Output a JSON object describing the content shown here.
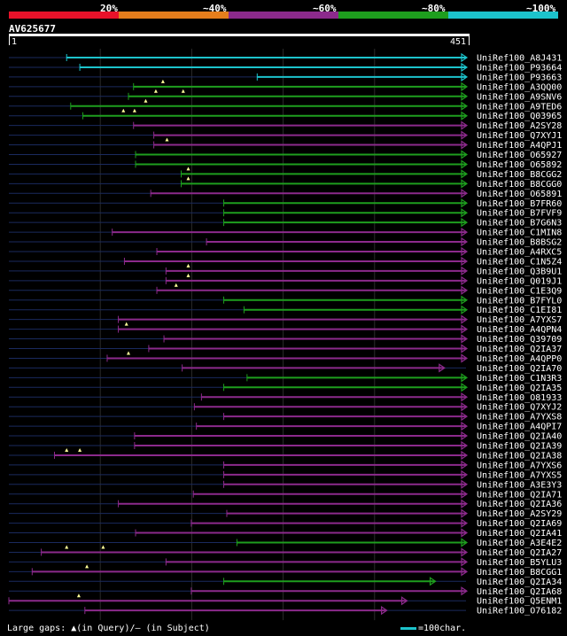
{
  "identity_legend": {
    "labels": [
      "20%",
      "~40%",
      "~60%",
      "~80%",
      "~100%"
    ],
    "colors": [
      "#e8122a",
      "#e67e1c",
      "#8c2a8c",
      "#1e9e1e",
      "#1cc3cc"
    ]
  },
  "query": {
    "id": "AV625677",
    "length_start": "1",
    "length_end": "451"
  },
  "footer": {
    "gaps_text": "Large gaps: ▲(in Query)/– (in Subject)",
    "scale_text": "=100char."
  },
  "chart_data": {
    "type": "alignment",
    "query_length": 451,
    "hits": [
      {
        "name": "UniRef100_A8J431",
        "start": 57,
        "end": 451,
        "color": "cyan",
        "arrow": true
      },
      {
        "name": "UniRef100_P93664",
        "start": 70,
        "end": 451,
        "color": "cyan",
        "arrow": true
      },
      {
        "name": "UniRef100_P93663",
        "start": 245,
        "end": 451,
        "color": "cyan",
        "arrow": true
      },
      {
        "name": "UniRef100_A3QQ00",
        "start": 123,
        "end": 451,
        "color": "green",
        "arrow": true,
        "gaps": [
          152
        ]
      },
      {
        "name": "UniRef100_A9SNV6",
        "start": 118,
        "end": 451,
        "color": "green",
        "arrow": true,
        "gaps": [
          145,
          172
        ]
      },
      {
        "name": "UniRef100_A9TED6",
        "start": 61,
        "end": 451,
        "color": "green",
        "arrow": true,
        "gaps": [
          135
        ]
      },
      {
        "name": "UniRef100_Q03965",
        "start": 73,
        "end": 451,
        "color": "green",
        "arrow": true,
        "gaps": [
          113,
          124
        ]
      },
      {
        "name": "UniRef100_A2SY28",
        "start": 123,
        "end": 451,
        "color": "purple",
        "arrow": true
      },
      {
        "name": "UniRef100_Q7XYJ1",
        "start": 143,
        "end": 451,
        "color": "purple",
        "arrow": true
      },
      {
        "name": "UniRef100_A4QPJ1",
        "start": 143,
        "end": 451,
        "color": "purple",
        "arrow": true,
        "gaps": [
          156
        ]
      },
      {
        "name": "UniRef100_O65927",
        "start": 125,
        "end": 451,
        "color": "green",
        "arrow": true
      },
      {
        "name": "UniRef100_O65892",
        "start": 125,
        "end": 451,
        "color": "green",
        "arrow": true
      },
      {
        "name": "UniRef100_B8CGG2",
        "start": 170,
        "end": 451,
        "color": "green",
        "arrow": true,
        "gaps": [
          177
        ]
      },
      {
        "name": "UniRef100_B8CGG0",
        "start": 170,
        "end": 451,
        "color": "green",
        "arrow": true,
        "gaps": [
          177
        ]
      },
      {
        "name": "UniRef100_O65891",
        "start": 140,
        "end": 451,
        "color": "purple",
        "arrow": true
      },
      {
        "name": "UniRef100_B7FR60",
        "start": 212,
        "end": 451,
        "color": "green",
        "arrow": true
      },
      {
        "name": "UniRef100_B7FVF9",
        "start": 212,
        "end": 451,
        "color": "green",
        "arrow": true
      },
      {
        "name": "UniRef100_B7G6N3",
        "start": 212,
        "end": 451,
        "color": "green",
        "arrow": true
      },
      {
        "name": "UniRef100_C1MIN8",
        "start": 102,
        "end": 451,
        "color": "purple",
        "arrow": true
      },
      {
        "name": "UniRef100_B8BSG2",
        "start": 195,
        "end": 451,
        "color": "purple",
        "arrow": true
      },
      {
        "name": "UniRef100_A4RXC5",
        "start": 146,
        "end": 451,
        "color": "purple",
        "arrow": true
      },
      {
        "name": "UniRef100_C1N5Z4",
        "start": 114,
        "end": 451,
        "color": "purple",
        "arrow": true
      },
      {
        "name": "UniRef100_Q3B9U1",
        "start": 155,
        "end": 451,
        "color": "purple",
        "arrow": true,
        "gaps": [
          177
        ]
      },
      {
        "name": "UniRef100_Q019J1",
        "start": 155,
        "end": 451,
        "color": "purple",
        "arrow": true,
        "gaps": [
          177
        ]
      },
      {
        "name": "UniRef100_C1E3Q9",
        "start": 146,
        "end": 451,
        "color": "purple",
        "arrow": true,
        "gaps": [
          165
        ]
      },
      {
        "name": "UniRef100_B7FYL0",
        "start": 212,
        "end": 451,
        "color": "green",
        "arrow": true
      },
      {
        "name": "UniRef100_C1EI81",
        "start": 232,
        "end": 451,
        "color": "green",
        "arrow": true
      },
      {
        "name": "UniRef100_A7YXS7",
        "start": 108,
        "end": 451,
        "color": "purple",
        "arrow": true
      },
      {
        "name": "UniRef100_A4QPN4",
        "start": 108,
        "end": 451,
        "color": "purple",
        "arrow": true,
        "gaps": [
          116
        ]
      },
      {
        "name": "UniRef100_Q39709",
        "start": 153,
        "end": 451,
        "color": "purple",
        "arrow": true
      },
      {
        "name": "UniRef100_Q2IA37",
        "start": 138,
        "end": 451,
        "color": "purple",
        "arrow": true
      },
      {
        "name": "UniRef100_A4QPP0",
        "start": 97,
        "end": 451,
        "color": "purple",
        "arrow": true,
        "gaps": [
          118
        ]
      },
      {
        "name": "UniRef100_Q2IA70",
        "start": 171,
        "end": 429,
        "color": "purple",
        "arrow": true
      },
      {
        "name": "UniRef100_C1N3R3",
        "start": 235,
        "end": 451,
        "color": "green",
        "arrow": true
      },
      {
        "name": "UniRef100_Q2IA35",
        "start": 212,
        "end": 451,
        "color": "green",
        "arrow": true
      },
      {
        "name": "UniRef100_O81933",
        "start": 190,
        "end": 451,
        "color": "purple",
        "arrow": true
      },
      {
        "name": "UniRef100_Q7XYJ2",
        "start": 183,
        "end": 451,
        "color": "purple",
        "arrow": true
      },
      {
        "name": "UniRef100_A7YXS8",
        "start": 212,
        "end": 451,
        "color": "purple",
        "arrow": true
      },
      {
        "name": "UniRef100_A4QPI7",
        "start": 185,
        "end": 451,
        "color": "purple",
        "arrow": true
      },
      {
        "name": "UniRef100_Q2IA40",
        "start": 124,
        "end": 451,
        "color": "purple",
        "arrow": true
      },
      {
        "name": "UniRef100_Q2IA39",
        "start": 124,
        "end": 451,
        "color": "purple",
        "arrow": true
      },
      {
        "name": "UniRef100_Q2IA38",
        "start": 45,
        "end": 451,
        "color": "purple",
        "arrow": true,
        "gaps": [
          57,
          70
        ]
      },
      {
        "name": "UniRef100_A7YXS6",
        "start": 212,
        "end": 451,
        "color": "purple",
        "arrow": true
      },
      {
        "name": "UniRef100_A7YXS5",
        "start": 212,
        "end": 451,
        "color": "purple",
        "arrow": true
      },
      {
        "name": "UniRef100_A3E3Y3",
        "start": 212,
        "end": 451,
        "color": "purple",
        "arrow": true
      },
      {
        "name": "UniRef100_Q2IA71",
        "start": 182,
        "end": 451,
        "color": "purple",
        "arrow": true
      },
      {
        "name": "UniRef100_Q2IA36",
        "start": 108,
        "end": 451,
        "color": "purple",
        "arrow": true
      },
      {
        "name": "UniRef100_A2SY29",
        "start": 215,
        "end": 451,
        "color": "purple",
        "arrow": true
      },
      {
        "name": "UniRef100_Q2IA69",
        "start": 180,
        "end": 451,
        "color": "purple",
        "arrow": true
      },
      {
        "name": "UniRef100_Q2IA41",
        "start": 125,
        "end": 451,
        "color": "purple",
        "arrow": true
      },
      {
        "name": "UniRef100_A3E4E2",
        "start": 225,
        "end": 451,
        "color": "green",
        "arrow": true
      },
      {
        "name": "UniRef100_Q2IA27",
        "start": 32,
        "end": 451,
        "color": "purple",
        "arrow": true,
        "gaps": [
          57,
          93
        ]
      },
      {
        "name": "UniRef100_B5YLU3",
        "start": 155,
        "end": 451,
        "color": "purple",
        "arrow": true
      },
      {
        "name": "UniRef100_B8CGG1",
        "start": 23,
        "end": 451,
        "color": "purple",
        "arrow": true,
        "gaps": [
          77
        ]
      },
      {
        "name": "UniRef100_Q2IA34",
        "start": 212,
        "end": 420,
        "color": "green",
        "arrow": true
      },
      {
        "name": "UniRef100_Q2IA68",
        "start": 180,
        "end": 451,
        "color": "purple",
        "arrow": true
      },
      {
        "name": "UniRef100_Q5ENM1",
        "start": 0,
        "end": 392,
        "color": "purple",
        "arrow": true,
        "gaps": [
          69
        ]
      },
      {
        "name": "UniRef100_O76182",
        "start": 75,
        "end": 372,
        "color": "purple",
        "arrow": true
      }
    ]
  }
}
